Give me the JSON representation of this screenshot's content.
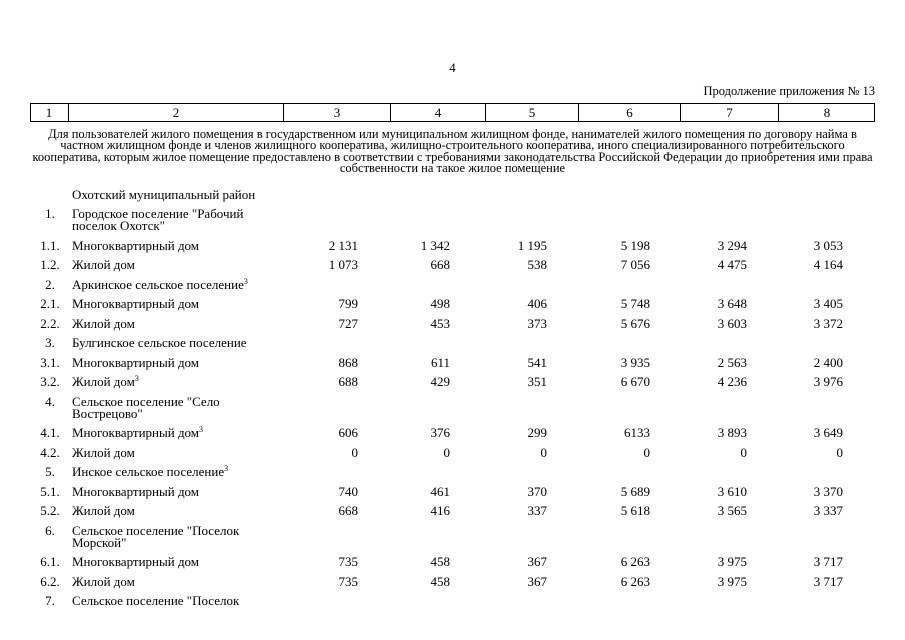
{
  "page_number": "4",
  "continuation": "Продолжение приложения № 13",
  "table": {
    "header": [
      "1",
      "2",
      "3",
      "4",
      "5",
      "6",
      "7",
      "8"
    ],
    "section_title": "Для пользователей жилого помещения в государственном или муниципальном жилищном фонде, нанимателей жилого помещения по договору найма в частном жилищном фонде и членов жилищного кооператива, жилищно-строительного кооператива, иного специализированного потребительского кооператива, которым жилое помещение предоставлено в соответствии с требованиями законодательства Российской Федерации до приобретения ими права собственности на такое жилое помещение",
    "rows": [
      {
        "name": "Охотский муниципальный район"
      },
      {
        "num": "1.",
        "name": "Городское поселение \"Рабочий поселок Охотск\""
      },
      {
        "num": "1.1.",
        "name": "Многоквартирный дом",
        "values": [
          "2 131",
          "1 342",
          "1 195",
          "5 198",
          "3 294",
          "3 053"
        ]
      },
      {
        "num": "1.2.",
        "name": "Жилой дом",
        "values": [
          "1 073",
          "668",
          "538",
          "7 056",
          "4 475",
          "4 164"
        ]
      },
      {
        "num": "2.",
        "name": "Аркинское сельское поселение",
        "note": "3"
      },
      {
        "num": "2.1.",
        "name": "Многоквартирный дом",
        "values": [
          "799",
          "498",
          "406",
          "5 748",
          "3 648",
          "3 405"
        ]
      },
      {
        "num": "2.2.",
        "name": "Жилой дом",
        "values": [
          "727",
          "453",
          "373",
          "5 676",
          "3 603",
          "3 372"
        ]
      },
      {
        "num": "3.",
        "name": "Булгинское сельское поселение"
      },
      {
        "num": "3.1.",
        "name": "Многоквартирный дом",
        "values": [
          "868",
          "611",
          "541",
          "3 935",
          "2 563",
          "2 400"
        ]
      },
      {
        "num": "3.2.",
        "name": "Жилой дом",
        "note": "3",
        "values": [
          "688",
          "429",
          "351",
          "6 670",
          "4 236",
          "3 976"
        ]
      },
      {
        "num": "4.",
        "name": "Сельское поселение \"Село Вострецово\""
      },
      {
        "num": "4.1.",
        "name": "Многоквартирный дом",
        "note": "3",
        "values": [
          "606",
          "376",
          "299",
          "6133",
          "3 893",
          "3 649"
        ]
      },
      {
        "num": "4.2.",
        "name": "Жилой дом",
        "values": [
          "0",
          "0",
          "0",
          "0",
          "0",
          "0"
        ]
      },
      {
        "num": "5.",
        "name": "Инское сельское поселение",
        "note": "3"
      },
      {
        "num": "5.1.",
        "name": "Многоквартирный дом",
        "values": [
          "740",
          "461",
          "370",
          "5 689",
          "3 610",
          "3 370"
        ]
      },
      {
        "num": "5.2.",
        "name": "Жилой дом",
        "values": [
          "668",
          "416",
          "337",
          "5 618",
          "3 565",
          "3 337"
        ]
      },
      {
        "num": "6.",
        "name": "Сельское поселение \"Поселок Морской\""
      },
      {
        "num": "6.1.",
        "name": "Многоквартирный дом",
        "values": [
          "735",
          "458",
          "367",
          "6 263",
          "3 975",
          "3 717"
        ]
      },
      {
        "num": "6.2.",
        "name": "Жилой дом",
        "values": [
          "735",
          "458",
          "367",
          "6 263",
          "3 975",
          "3 717"
        ]
      },
      {
        "num": "7.",
        "name": "Сельское поселение \"Поселок"
      }
    ]
  }
}
